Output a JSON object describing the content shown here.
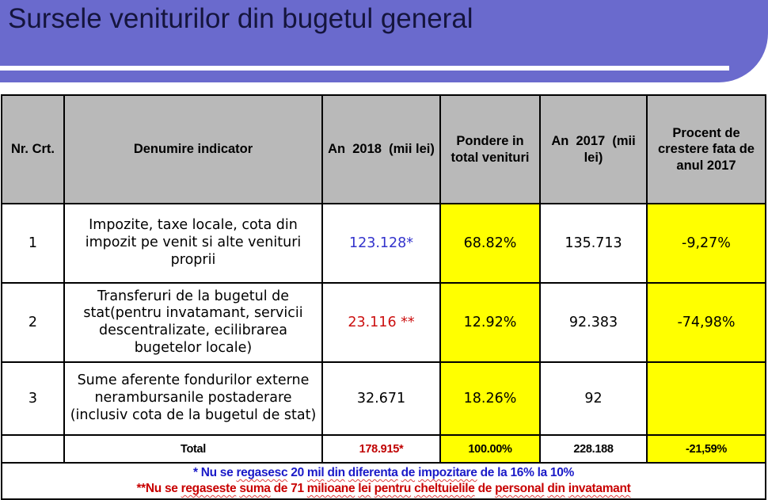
{
  "title": "Sursele veniturilor din bugetul general",
  "colors": {
    "banner": "#6a6acd",
    "titleInk": "#15153d",
    "headerBg": "#b9b9b9",
    "hl": "#ffff00",
    "numBlue": "#3333cc",
    "numRed": "#cc1111",
    "totalRed": "#c00000",
    "noteBlue": "#1a1ac8",
    "noteRed": "#c80000",
    "squiggle": "#e04040",
    "line": "#000000"
  },
  "table": {
    "headers": [
      "Nr. Crt.",
      "Denumire indicator",
      "An  2018  (mii lei)",
      "Pondere in total venituri",
      "An  2017  (mii lei)",
      "Procent de crestere fata de anul 2017"
    ],
    "rows": [
      {
        "nr": "1",
        "indicator": "Impozite, taxe locale, cota din impozit pe venit si alte venituri proprii",
        "an2018": "123.128*",
        "pondere": "68.82%",
        "an2017": "135.713",
        "procent": "-9,27%"
      },
      {
        "nr": "2",
        "indicator": "Transferuri de la bugetul de stat(pentru invatamant, servicii descentralizate, ecilibrarea bugetelor locale)",
        "an2018": "23.116 **",
        "pondere": "12.92%",
        "an2017": "92.383",
        "procent": "-74,98%"
      },
      {
        "nr": "3",
        "indicator": "Sume aferente fondurilor externe nerambursanile postaderare (inclusiv cota de la bugetul de stat)",
        "an2018": "32.671",
        "pondere": "18.26%",
        "an2017": "92",
        "procent": ""
      }
    ],
    "total": {
      "label": "Total",
      "an2018": "178.915*",
      "pondere": "100.00%",
      "an2017": "228.188",
      "procent": "-21,59%"
    }
  },
  "notes": {
    "line1": {
      "segments": [
        {
          "t": "* Nu se "
        },
        {
          "t": "regasesc",
          "w": true
        },
        {
          "t": " 20 "
        },
        {
          "t": "mil",
          "w": true
        },
        {
          "t": " "
        },
        {
          "t": "din",
          "w": true
        },
        {
          "t": " "
        },
        {
          "t": "diferenta",
          "w": true
        },
        {
          "t": " "
        },
        {
          "t": "de",
          "w": true
        },
        {
          "t": " "
        },
        {
          "t": "impozitare",
          "w": true
        },
        {
          "t": " de la 16% la 10%"
        }
      ]
    },
    "line2": {
      "segments": [
        {
          "t": "**Nu se "
        },
        {
          "t": "regaseste",
          "w": true
        },
        {
          "t": " "
        },
        {
          "t": "suma",
          "w": true
        },
        {
          "t": " de 71 "
        },
        {
          "t": "milioane",
          "w": true
        },
        {
          "t": " "
        },
        {
          "t": "lei",
          "w": true
        },
        {
          "t": " "
        },
        {
          "t": "pentru",
          "w": true
        },
        {
          "t": " "
        },
        {
          "t": "cheltuielile",
          "w": true
        },
        {
          "t": " de "
        },
        {
          "t": "personal",
          "w": true
        },
        {
          "t": " "
        },
        {
          "t": "din",
          "w": true
        },
        {
          "t": " "
        },
        {
          "t": "invatamant",
          "w": true
        }
      ]
    }
  }
}
